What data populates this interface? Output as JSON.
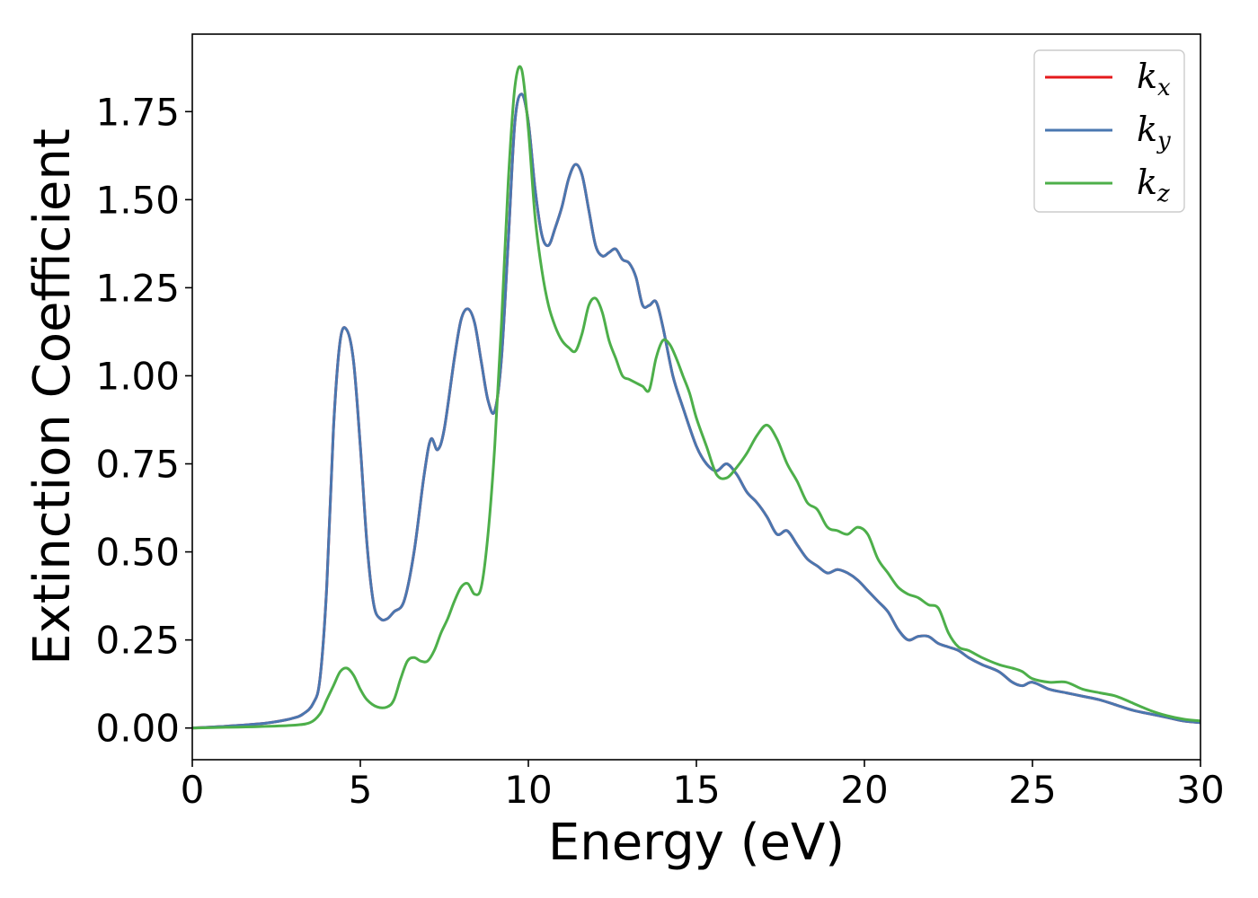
{
  "chart_data": {
    "type": "line",
    "title": "",
    "xlabel": "Energy (eV)",
    "ylabel": "Extinction Coefficient",
    "xlim": [
      0,
      30
    ],
    "ylim": [
      -0.09,
      1.97
    ],
    "xticks": [
      0,
      5,
      10,
      15,
      20,
      25,
      30
    ],
    "xtick_labels": [
      "0",
      "5",
      "10",
      "15",
      "20",
      "25",
      "30"
    ],
    "yticks": [
      0.0,
      0.25,
      0.5,
      0.75,
      1.0,
      1.25,
      1.5,
      1.75
    ],
    "ytick_labels": [
      "0.00",
      "0.25",
      "0.50",
      "0.75",
      "1.00",
      "1.25",
      "1.50",
      "1.75"
    ],
    "grid": false,
    "legend_position": "top-right",
    "series": [
      {
        "name": "k_x",
        "legend_main": "k",
        "legend_sub": "x",
        "color": "#e41a1c",
        "x": [
          0,
          1,
          2,
          2.5,
          3,
          3.3,
          3.6,
          3.8,
          4.0,
          4.2,
          4.4,
          4.6,
          4.8,
          5.0,
          5.2,
          5.4,
          5.6,
          5.8,
          6.0,
          6.3,
          6.6,
          6.9,
          7.1,
          7.3,
          7.5,
          7.8,
          8.0,
          8.2,
          8.4,
          8.6,
          8.8,
          9.0,
          9.2,
          9.4,
          9.6,
          9.8,
          10.0,
          10.2,
          10.4,
          10.6,
          10.8,
          11.0,
          11.2,
          11.4,
          11.6,
          11.8,
          12.0,
          12.2,
          12.4,
          12.6,
          12.8,
          13.0,
          13.2,
          13.4,
          13.6,
          13.8,
          14.0,
          14.3,
          14.6,
          15.0,
          15.3,
          15.6,
          15.9,
          16.2,
          16.5,
          16.8,
          17.1,
          17.4,
          17.7,
          18.0,
          18.3,
          18.6,
          18.9,
          19.2,
          19.5,
          19.8,
          20.1,
          20.4,
          20.7,
          21.0,
          21.3,
          21.6,
          21.9,
          22.2,
          22.5,
          22.8,
          23.1,
          23.5,
          24.0,
          24.4,
          24.7,
          25.0,
          25.5,
          26.0,
          26.5,
          27.0,
          27.5,
          28.0,
          28.5,
          29.0,
          29.5,
          30.0
        ],
        "values": [
          0.0,
          0.005,
          0.012,
          0.018,
          0.028,
          0.04,
          0.07,
          0.14,
          0.4,
          0.85,
          1.1,
          1.13,
          1.04,
          0.8,
          0.52,
          0.35,
          0.31,
          0.31,
          0.33,
          0.36,
          0.5,
          0.72,
          0.82,
          0.79,
          0.85,
          1.05,
          1.16,
          1.19,
          1.15,
          1.04,
          0.93,
          0.9,
          1.05,
          1.38,
          1.72,
          1.8,
          1.72,
          1.53,
          1.4,
          1.37,
          1.42,
          1.48,
          1.56,
          1.6,
          1.57,
          1.47,
          1.37,
          1.34,
          1.35,
          1.36,
          1.33,
          1.32,
          1.28,
          1.2,
          1.2,
          1.21,
          1.14,
          1.0,
          0.91,
          0.8,
          0.75,
          0.73,
          0.75,
          0.72,
          0.67,
          0.64,
          0.6,
          0.55,
          0.56,
          0.52,
          0.48,
          0.46,
          0.44,
          0.45,
          0.44,
          0.42,
          0.39,
          0.36,
          0.33,
          0.28,
          0.25,
          0.26,
          0.26,
          0.24,
          0.23,
          0.22,
          0.2,
          0.18,
          0.16,
          0.13,
          0.12,
          0.13,
          0.11,
          0.1,
          0.09,
          0.08,
          0.065,
          0.05,
          0.04,
          0.03,
          0.02,
          0.015
        ]
      },
      {
        "name": "k_y",
        "legend_main": "k",
        "legend_sub": "y",
        "color": "#4a77b0",
        "x": [
          0,
          1,
          2,
          2.5,
          3,
          3.3,
          3.6,
          3.8,
          4.0,
          4.2,
          4.4,
          4.6,
          4.8,
          5.0,
          5.2,
          5.4,
          5.6,
          5.8,
          6.0,
          6.3,
          6.6,
          6.9,
          7.1,
          7.3,
          7.5,
          7.8,
          8.0,
          8.2,
          8.4,
          8.6,
          8.8,
          9.0,
          9.2,
          9.4,
          9.6,
          9.8,
          10.0,
          10.2,
          10.4,
          10.6,
          10.8,
          11.0,
          11.2,
          11.4,
          11.6,
          11.8,
          12.0,
          12.2,
          12.4,
          12.6,
          12.8,
          13.0,
          13.2,
          13.4,
          13.6,
          13.8,
          14.0,
          14.3,
          14.6,
          15.0,
          15.3,
          15.6,
          15.9,
          16.2,
          16.5,
          16.8,
          17.1,
          17.4,
          17.7,
          18.0,
          18.3,
          18.6,
          18.9,
          19.2,
          19.5,
          19.8,
          20.1,
          20.4,
          20.7,
          21.0,
          21.3,
          21.6,
          21.9,
          22.2,
          22.5,
          22.8,
          23.1,
          23.5,
          24.0,
          24.4,
          24.7,
          25.0,
          25.5,
          26.0,
          26.5,
          27.0,
          27.5,
          28.0,
          28.5,
          29.0,
          29.5,
          30.0
        ],
        "values": [
          0.0,
          0.005,
          0.012,
          0.018,
          0.028,
          0.04,
          0.07,
          0.14,
          0.4,
          0.85,
          1.1,
          1.13,
          1.04,
          0.8,
          0.52,
          0.35,
          0.31,
          0.31,
          0.33,
          0.36,
          0.5,
          0.72,
          0.82,
          0.79,
          0.85,
          1.05,
          1.16,
          1.19,
          1.15,
          1.04,
          0.93,
          0.9,
          1.05,
          1.38,
          1.72,
          1.8,
          1.72,
          1.53,
          1.4,
          1.37,
          1.42,
          1.48,
          1.56,
          1.6,
          1.57,
          1.47,
          1.37,
          1.34,
          1.35,
          1.36,
          1.33,
          1.32,
          1.28,
          1.2,
          1.2,
          1.21,
          1.14,
          1.0,
          0.91,
          0.8,
          0.75,
          0.73,
          0.75,
          0.72,
          0.67,
          0.64,
          0.6,
          0.55,
          0.56,
          0.52,
          0.48,
          0.46,
          0.44,
          0.45,
          0.44,
          0.42,
          0.39,
          0.36,
          0.33,
          0.28,
          0.25,
          0.26,
          0.26,
          0.24,
          0.23,
          0.22,
          0.2,
          0.18,
          0.16,
          0.13,
          0.12,
          0.13,
          0.11,
          0.1,
          0.09,
          0.08,
          0.065,
          0.05,
          0.04,
          0.03,
          0.02,
          0.015
        ]
      },
      {
        "name": "k_z",
        "legend_main": "k",
        "legend_sub": "z",
        "color": "#4daf4a",
        "x": [
          0,
          1,
          2,
          3,
          3.5,
          3.8,
          4.0,
          4.2,
          4.4,
          4.6,
          4.8,
          5.0,
          5.2,
          5.5,
          5.8,
          6.0,
          6.2,
          6.4,
          6.6,
          6.8,
          7.0,
          7.2,
          7.4,
          7.6,
          7.8,
          8.0,
          8.2,
          8.4,
          8.6,
          8.8,
          9.0,
          9.2,
          9.4,
          9.6,
          9.8,
          10.0,
          10.2,
          10.4,
          10.6,
          10.8,
          11.0,
          11.2,
          11.4,
          11.6,
          11.8,
          12.0,
          12.2,
          12.4,
          12.6,
          12.8,
          13.0,
          13.2,
          13.4,
          13.6,
          13.8,
          14.0,
          14.2,
          14.4,
          14.6,
          14.8,
          15.0,
          15.3,
          15.6,
          15.9,
          16.2,
          16.5,
          16.8,
          17.1,
          17.4,
          17.7,
          18.0,
          18.3,
          18.6,
          18.9,
          19.2,
          19.5,
          19.8,
          20.1,
          20.4,
          20.7,
          21.0,
          21.3,
          21.6,
          21.9,
          22.2,
          22.5,
          22.8,
          23.1,
          23.5,
          24.0,
          24.4,
          24.7,
          25.0,
          25.5,
          26.0,
          26.5,
          27.0,
          27.5,
          28.0,
          28.5,
          29.0,
          29.5,
          30.0
        ],
        "values": [
          0.0,
          0.002,
          0.004,
          0.008,
          0.015,
          0.04,
          0.08,
          0.12,
          0.16,
          0.17,
          0.15,
          0.11,
          0.08,
          0.06,
          0.06,
          0.08,
          0.14,
          0.19,
          0.2,
          0.19,
          0.19,
          0.22,
          0.27,
          0.31,
          0.36,
          0.4,
          0.41,
          0.38,
          0.4,
          0.55,
          0.8,
          1.15,
          1.55,
          1.82,
          1.87,
          1.7,
          1.45,
          1.3,
          1.2,
          1.14,
          1.1,
          1.08,
          1.07,
          1.12,
          1.2,
          1.22,
          1.18,
          1.1,
          1.05,
          1.0,
          0.99,
          0.98,
          0.97,
          0.96,
          1.05,
          1.1,
          1.09,
          1.05,
          1.0,
          0.95,
          0.88,
          0.8,
          0.72,
          0.71,
          0.74,
          0.78,
          0.83,
          0.86,
          0.82,
          0.75,
          0.7,
          0.64,
          0.62,
          0.57,
          0.56,
          0.55,
          0.57,
          0.55,
          0.48,
          0.44,
          0.4,
          0.38,
          0.37,
          0.35,
          0.34,
          0.27,
          0.23,
          0.22,
          0.2,
          0.18,
          0.17,
          0.16,
          0.14,
          0.13,
          0.13,
          0.11,
          0.1,
          0.09,
          0.07,
          0.05,
          0.035,
          0.025,
          0.02
        ]
      }
    ]
  }
}
